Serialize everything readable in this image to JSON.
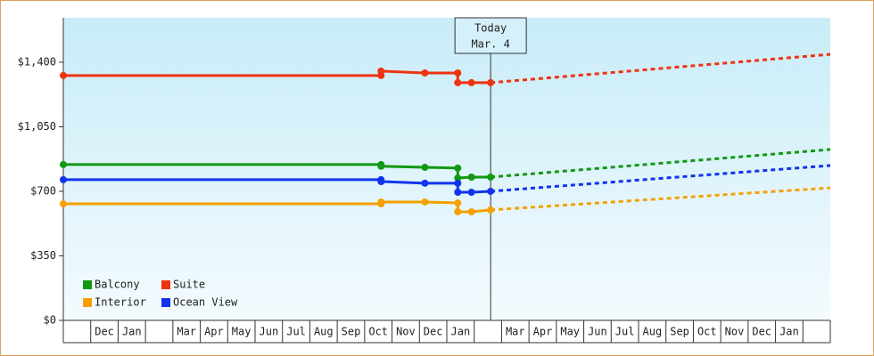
{
  "chart_data": {
    "type": "line",
    "annotation": {
      "title": "Today",
      "date": "Mar. 4",
      "x": 15.6
    },
    "categories": [
      null,
      "Dec",
      "Jan",
      null,
      "Mar",
      "Apr",
      "May",
      "Jun",
      "Jul",
      "Aug",
      "Sep",
      "Oct",
      "Nov",
      "Dec",
      "Jan",
      null,
      "Mar",
      "Apr",
      "May",
      "Jun",
      "Jul",
      "Aug",
      "Sep",
      "Oct",
      "Nov",
      "Dec",
      "Jan",
      null
    ],
    "xlim": [
      0,
      28
    ],
    "x": [
      0,
      11.6,
      11.6,
      13.2,
      14.4,
      14.4,
      14.9,
      15.6
    ],
    "forecast_x": [
      15.6,
      28
    ],
    "ylim": [
      0,
      1641
    ],
    "yticks": [
      {
        "value": 0,
        "label": "$0"
      },
      {
        "value": 350,
        "label": "$350"
      },
      {
        "value": 700,
        "label": "$700"
      },
      {
        "value": 1050,
        "label": "$1,050"
      },
      {
        "value": 1400,
        "label": "$1,400"
      }
    ],
    "series": [
      {
        "name": "Balcony",
        "color": "#119911",
        "values": [
          845,
          845,
          836,
          830,
          826,
          772,
          777,
          777
        ],
        "forecast": [
          777,
          927
        ]
      },
      {
        "name": "Suite",
        "color": "#ee3311",
        "values": [
          1328,
          1328,
          1352,
          1342,
          1342,
          1289,
          1289,
          1289
        ],
        "forecast": [
          1289,
          1443
        ]
      },
      {
        "name": "Interior",
        "color": "#f5a000",
        "values": [
          632,
          632,
          642,
          642,
          637,
          589,
          589,
          599
        ],
        "forecast": [
          599,
          719
        ]
      },
      {
        "name": "Ocean View",
        "color": "#1133ee",
        "values": [
          763,
          763,
          753,
          744,
          744,
          695,
          695,
          700
        ],
        "forecast": [
          700,
          840
        ]
      }
    ]
  }
}
